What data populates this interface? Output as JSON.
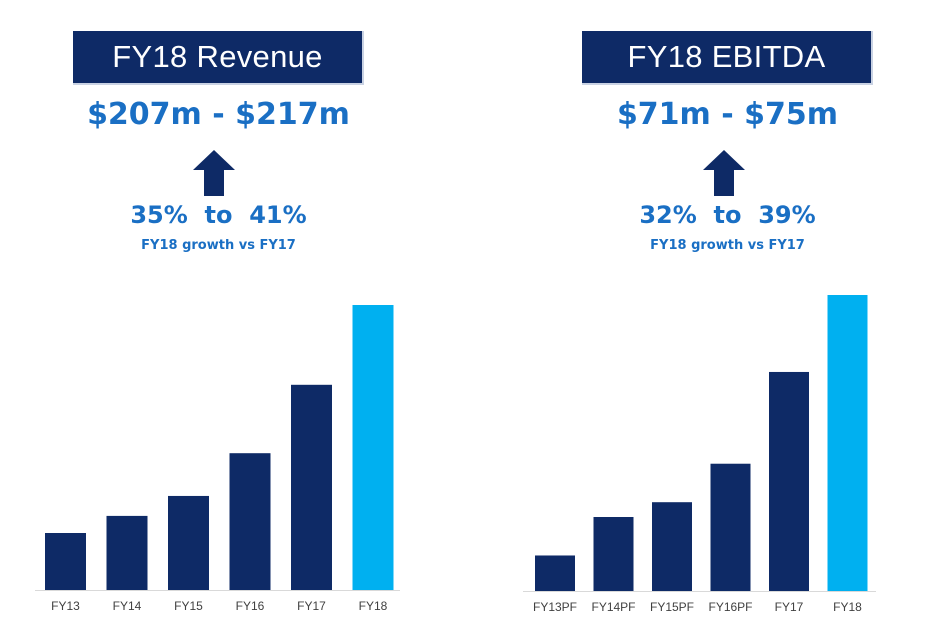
{
  "panels": [
    {
      "title": "FY18 Revenue",
      "range": "$207m - $217m",
      "growth": "35%  to  41%",
      "growth_sub": "FY18 growth vs FY17"
    },
    {
      "title": "FY18 EBITDA",
      "range": "$71m - $75m",
      "growth": "32%  to  39%",
      "growth_sub": "FY18 growth vs FY17"
    }
  ],
  "colors": {
    "title_bg": "#0e2a66",
    "accent_text": "#1a6fc4",
    "bar_dark": "#0e2a66",
    "bar_highlight": "#00b0f0",
    "arrow": "#0e2a66"
  },
  "chart_data": [
    {
      "type": "bar",
      "title": "",
      "categories": [
        "FY13",
        "FY14",
        "FY15",
        "FY16",
        "FY17",
        "FY18"
      ],
      "values": [
        20,
        26,
        33,
        48,
        72,
        100
      ],
      "highlight_index": 5,
      "xlabel": "",
      "ylabel": "",
      "ylim": [
        0,
        100
      ],
      "grid": false,
      "legend": "none"
    },
    {
      "type": "bar",
      "title": "",
      "categories": [
        "FY13PF",
        "FY14PF",
        "FY15PF",
        "FY16PF",
        "FY17",
        "FY18"
      ],
      "values": [
        12,
        25,
        30,
        43,
        74,
        100
      ],
      "highlight_index": 5,
      "xlabel": "",
      "ylabel": "",
      "ylim": [
        0,
        100
      ],
      "grid": false,
      "legend": "none"
    }
  ]
}
